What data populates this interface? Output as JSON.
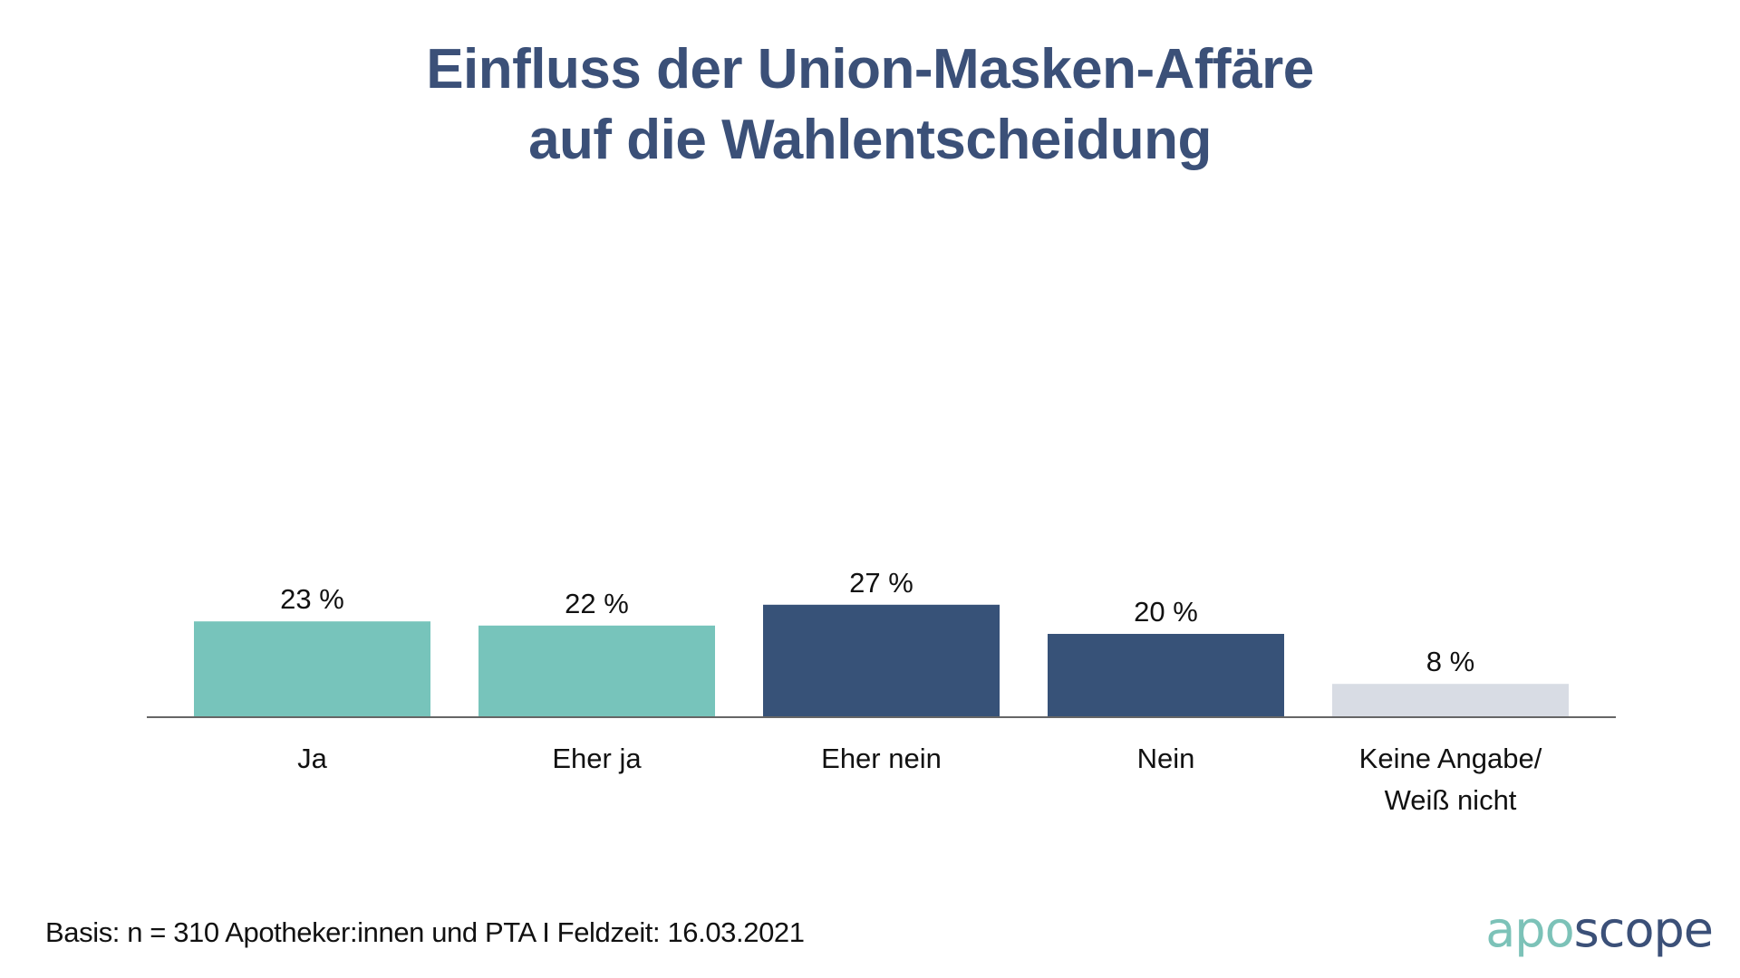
{
  "title_lines": [
    "Einfluss der Union-Masken-Affäre",
    "auf die Wahlentscheidung"
  ],
  "footer": "Basis: n = 310 Apotheker:innen und PTA I Feldzeit: 16.03.2021",
  "logo": {
    "part1": "apo",
    "part2": "scope",
    "color1": "#7cc2b8",
    "color2": "#3b5078"
  },
  "chart_data": {
    "type": "bar",
    "title": "Einfluss der Union-Masken-Affäre auf die Wahlentscheidung",
    "xlabel": "",
    "ylabel": "",
    "ylim": [
      0,
      30
    ],
    "grid": false,
    "categories": [
      [
        "Ja"
      ],
      [
        "Eher ja"
      ],
      [
        "Eher nein"
      ],
      [
        "Nein"
      ],
      [
        "Keine Angabe/",
        "Weiß nicht"
      ]
    ],
    "values": [
      23,
      22,
      27,
      20,
      8
    ],
    "data_labels": [
      "23 %",
      "22 %",
      "27 %",
      "20 %",
      "8 %"
    ],
    "colors": [
      "#77c4bb",
      "#77c4bb",
      "#375278",
      "#375278",
      "#d8dce4"
    ],
    "axis_color": "#666666"
  }
}
